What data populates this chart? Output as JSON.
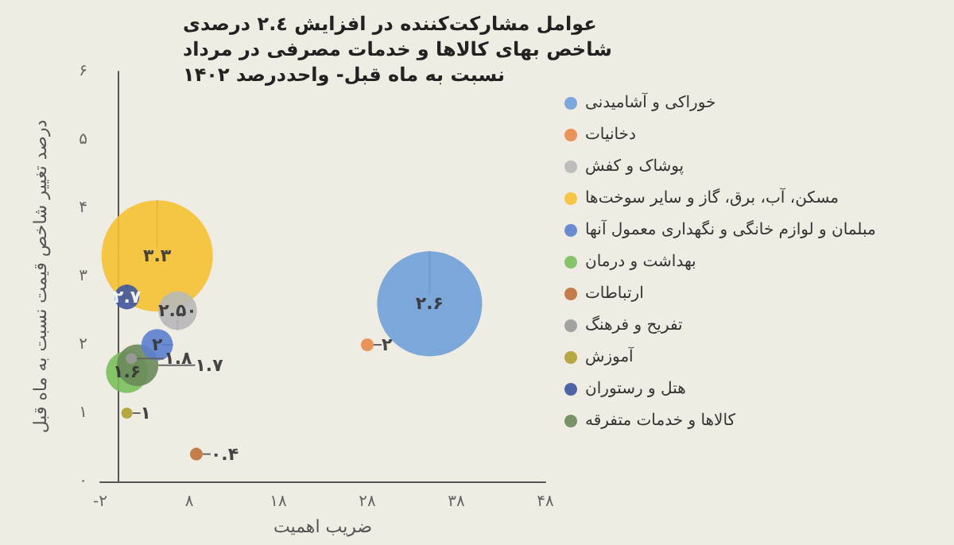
{
  "chart_data": {
    "type": "bubble",
    "title": "عوامل مشارکت‌کننده در افزایش ۲.٤ درصدی شاخص بهای کالاها و خدمات مصرفی در مرداد ۱۴۰۲ نسبت به ماه قبل- واحددرصد",
    "xlabel": "ضریب اهمیت",
    "ylabel": "درصد تغییر شاخص قیمت نسبت به ماه قبل",
    "xlim": [
      -2,
      48
    ],
    "xticks": [
      {
        "value": -2,
        "label": "-۲"
      },
      {
        "value": 8,
        "label": "۸"
      },
      {
        "value": 18,
        "label": "۱۸"
      },
      {
        "value": 28,
        "label": "۲۸"
      },
      {
        "value": 38,
        "label": "۳۸"
      },
      {
        "value": 48,
        "label": "۴۸"
      }
    ],
    "ylim": [
      0,
      6
    ],
    "yticks": [
      {
        "value": 0,
        "label": "۰"
      },
      {
        "value": 1,
        "label": "۱"
      },
      {
        "value": 2,
        "label": "۲"
      },
      {
        "value": 3,
        "label": "۳"
      },
      {
        "value": 4,
        "label": "۴"
      },
      {
        "value": 5,
        "label": "۵"
      },
      {
        "value": 6,
        "label": "۶"
      }
    ],
    "grid": false,
    "legend": "right",
    "series": [
      {
        "name": "خوراکی و آشامیدنی",
        "color": "#6fa0d8",
        "x": [
          35
        ],
        "values": [
          2.6
        ],
        "sizes": [
          0.89
        ],
        "value_labels": [
          "۲.۶"
        ]
      },
      {
        "name": "دخانیات",
        "color": "#e8894a",
        "x": [
          28
        ],
        "values": [
          2.0
        ],
        "sizes": [
          0.013
        ],
        "value_labels": [
          "۲"
        ]
      },
      {
        "name": "پوشاک و کفش",
        "color": "#b8b8b8",
        "x": [
          6.7
        ],
        "values": [
          2.5
        ],
        "sizes": [
          0.12
        ],
        "value_labels": [
          "۲.۵۰"
        ]
      },
      {
        "name": "مسکن، آب، برق، گاز و سایر سوخت‌ها",
        "color": "#f5c232",
        "x": [
          4.4
        ],
        "values": [
          3.3
        ],
        "sizes": [
          1
        ],
        "value_labels": [
          "۳.۳"
        ]
      },
      {
        "name": "مبلمان و لوازم خانگی و نگهداری معمول آنها",
        "color": "#5b80cf",
        "x": [
          4.4
        ],
        "values": [
          2.0
        ],
        "sizes": [
          0.08
        ],
        "value_labels": [
          "۲"
        ]
      },
      {
        "name": "بهداشت و درمان",
        "color": "#7bbf5a",
        "x": [
          1.0
        ],
        "values": [
          1.6
        ],
        "sizes": [
          0.14
        ],
        "value_labels": [
          "۱.۶"
        ]
      },
      {
        "name": "ارتباطات",
        "color": "#c0703a",
        "x": [
          8.8
        ],
        "values": [
          0.4
        ],
        "sizes": [
          0.013
        ],
        "value_labels": [
          "۰.۴"
        ]
      },
      {
        "name": "تفریح و فرهنگ",
        "color": "#9a9a9a",
        "x": [
          1.5
        ],
        "values": [
          1.8
        ],
        "sizes": [
          0.01
        ],
        "value_labels": [
          "۱.۸"
        ]
      },
      {
        "name": "آموزش",
        "color": "#b0a030",
        "x": [
          1.0
        ],
        "values": [
          1.0
        ],
        "sizes": [
          0.01
        ],
        "value_labels": [
          "۱"
        ]
      },
      {
        "name": "هتل و رستوران",
        "color": "#3f579e",
        "x": [
          1.0
        ],
        "values": [
          2.7
        ],
        "sizes": [
          0.05
        ],
        "value_labels": [
          "۲.۷"
        ]
      },
      {
        "name": "کالاها و خدمات متفرقه",
        "color": "#6a8a5a",
        "x": [
          2.2
        ],
        "values": [
          1.7
        ],
        "sizes": [
          0.14
        ],
        "value_labels": [
          "۱.۷"
        ]
      }
    ]
  }
}
